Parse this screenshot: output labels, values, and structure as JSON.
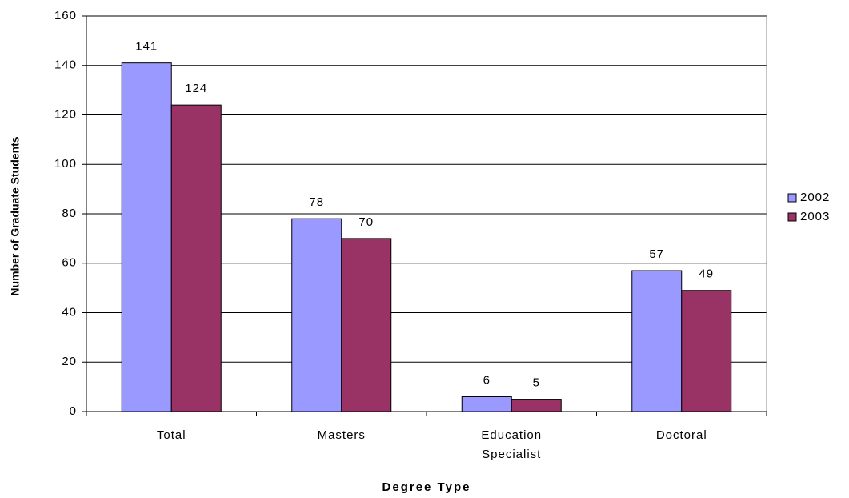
{
  "chart_data": {
    "type": "bar",
    "x_label": "Degree Type",
    "y_label": "Number of Graduate Students",
    "categories": [
      "Total",
      "Masters",
      "Education Specialist",
      "Doctoral"
    ],
    "series": [
      {
        "name": "2002",
        "color": "#9999ff",
        "values": [
          141,
          78,
          6,
          57
        ]
      },
      {
        "name": "2003",
        "color": "#993366",
        "values": [
          124,
          70,
          5,
          49
        ]
      }
    ],
    "ylim": [
      0,
      160
    ],
    "yticks": [
      0,
      20,
      40,
      60,
      80,
      100,
      120,
      140,
      160
    ],
    "grid": true,
    "legend": "right"
  }
}
